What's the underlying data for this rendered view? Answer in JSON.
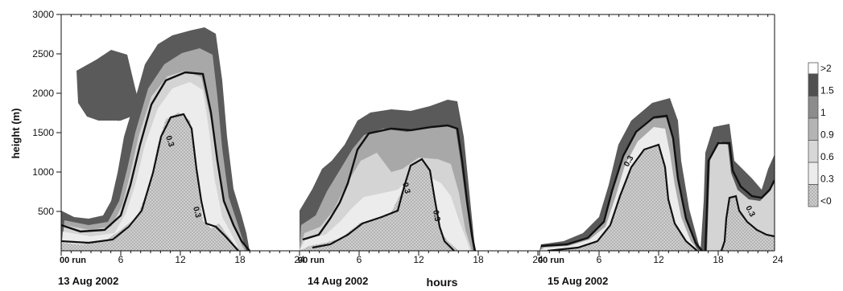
{
  "chart_data": {
    "type": "heatmap",
    "title": "",
    "xlabel": "hours",
    "ylabel": "height (m)",
    "ylim": [
      0,
      3000
    ],
    "y_ticks": [
      "3000",
      "2500",
      "2000",
      "1500",
      "1000",
      "500"
    ],
    "grid": false,
    "legend_placement": "right",
    "legend": [
      ">2",
      "1.5",
      "1",
      "0.9",
      "0.6",
      "0.3",
      "<0"
    ],
    "legend_colors": [
      "#ffffff",
      "#505050",
      "#8c8c8c",
      "#b4b4b4",
      "#d7d7d7",
      "#ececec",
      "#bdbdbd"
    ],
    "contour_labels": [
      "0.3",
      "0.3",
      "0.3",
      "0.3",
      "0.3",
      "0.3"
    ],
    "panels": [
      {
        "day": "13 Aug 2002",
        "run_label": "00 run",
        "x_ticks": [
          "6",
          "12",
          "18",
          "24"
        ],
        "x_tick_hours": [
          6,
          12,
          18,
          24
        ]
      },
      {
        "day": "14 Aug 2002",
        "run_label": "00 run",
        "x_ticks": [
          "6",
          "12",
          "18",
          "24"
        ],
        "x_tick_hours": [
          6,
          12,
          18,
          24
        ]
      },
      {
        "day": "15 Aug 2002",
        "run_label": "00 run",
        "x_ticks": [
          "6",
          "12",
          "18",
          "24"
        ],
        "x_tick_hours": [
          6,
          12,
          18,
          24
        ]
      }
    ]
  }
}
